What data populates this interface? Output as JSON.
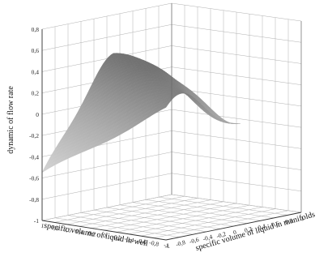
{
  "chart_data": {
    "type": "surface3d",
    "title": "",
    "zlabel": "dynamic of flow rate",
    "xlabel": "specific volume of liquid in well",
    "ylabel": "specific volume of liquid in manifolds",
    "z_ticks": [
      "-1",
      "-0,8",
      "-0,6",
      "-0,4",
      "-0,2",
      "0",
      "0,2",
      "0,4",
      "0,6",
      "0,8"
    ],
    "x_ticks": [
      "1",
      "0,8",
      "0,6",
      "0,4",
      "0,2",
      "0",
      "-0,2",
      "-0,4",
      "-0,6",
      "-0,8",
      "-1"
    ],
    "y_ticks": [
      "-1",
      "-0,8",
      "-0,6",
      "-0,4",
      "-0,2",
      "0",
      "0,2",
      "0,4",
      "0,6",
      "0,8",
      "1"
    ],
    "x_range": [
      -1,
      1
    ],
    "y_range": [
      -1,
      1
    ],
    "z_range": [
      -1,
      0.8
    ],
    "grid": true,
    "colormap": "gray",
    "surface_profile": {
      "description_points_along_ridge_z": [
        -1.0,
        -0.75,
        -0.45,
        -0.2,
        0.0,
        0.1,
        0.2,
        0.4,
        0.42,
        0.3,
        0.2,
        0.15,
        0.05,
        -0.05,
        -0.1
      ]
    }
  }
}
